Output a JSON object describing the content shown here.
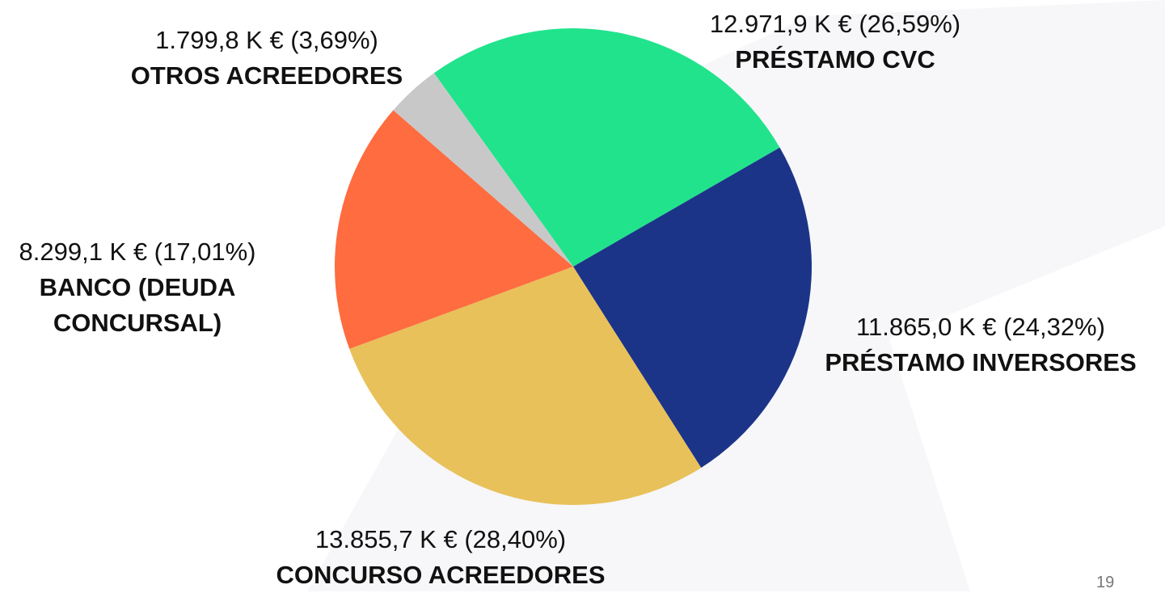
{
  "chart_data": {
    "type": "pie",
    "categories": [
      "PRÉSTAMO CVC",
      "PRÉSTAMO INVERSORES",
      "CONCURSO ACREEDORES",
      "BANCO (DEUDA CONCURSAL)",
      "OTROS ACREEDORES"
    ],
    "values": [
      26.59,
      24.32,
      28.4,
      17.01,
      3.69
    ],
    "value_labels": [
      "12.971,9 K € (26,59%)",
      "11.865,0 K € (24,32%)",
      "13.855,7 K € (28,40%)",
      "8.299,1 K € (17,01%)",
      "1.799,8 K € (3,69%)"
    ],
    "colors": [
      "#21e38c",
      "#1c3488",
      "#e8c15a",
      "#fe6c40",
      "#c8c8c8"
    ]
  },
  "page_number": "19"
}
